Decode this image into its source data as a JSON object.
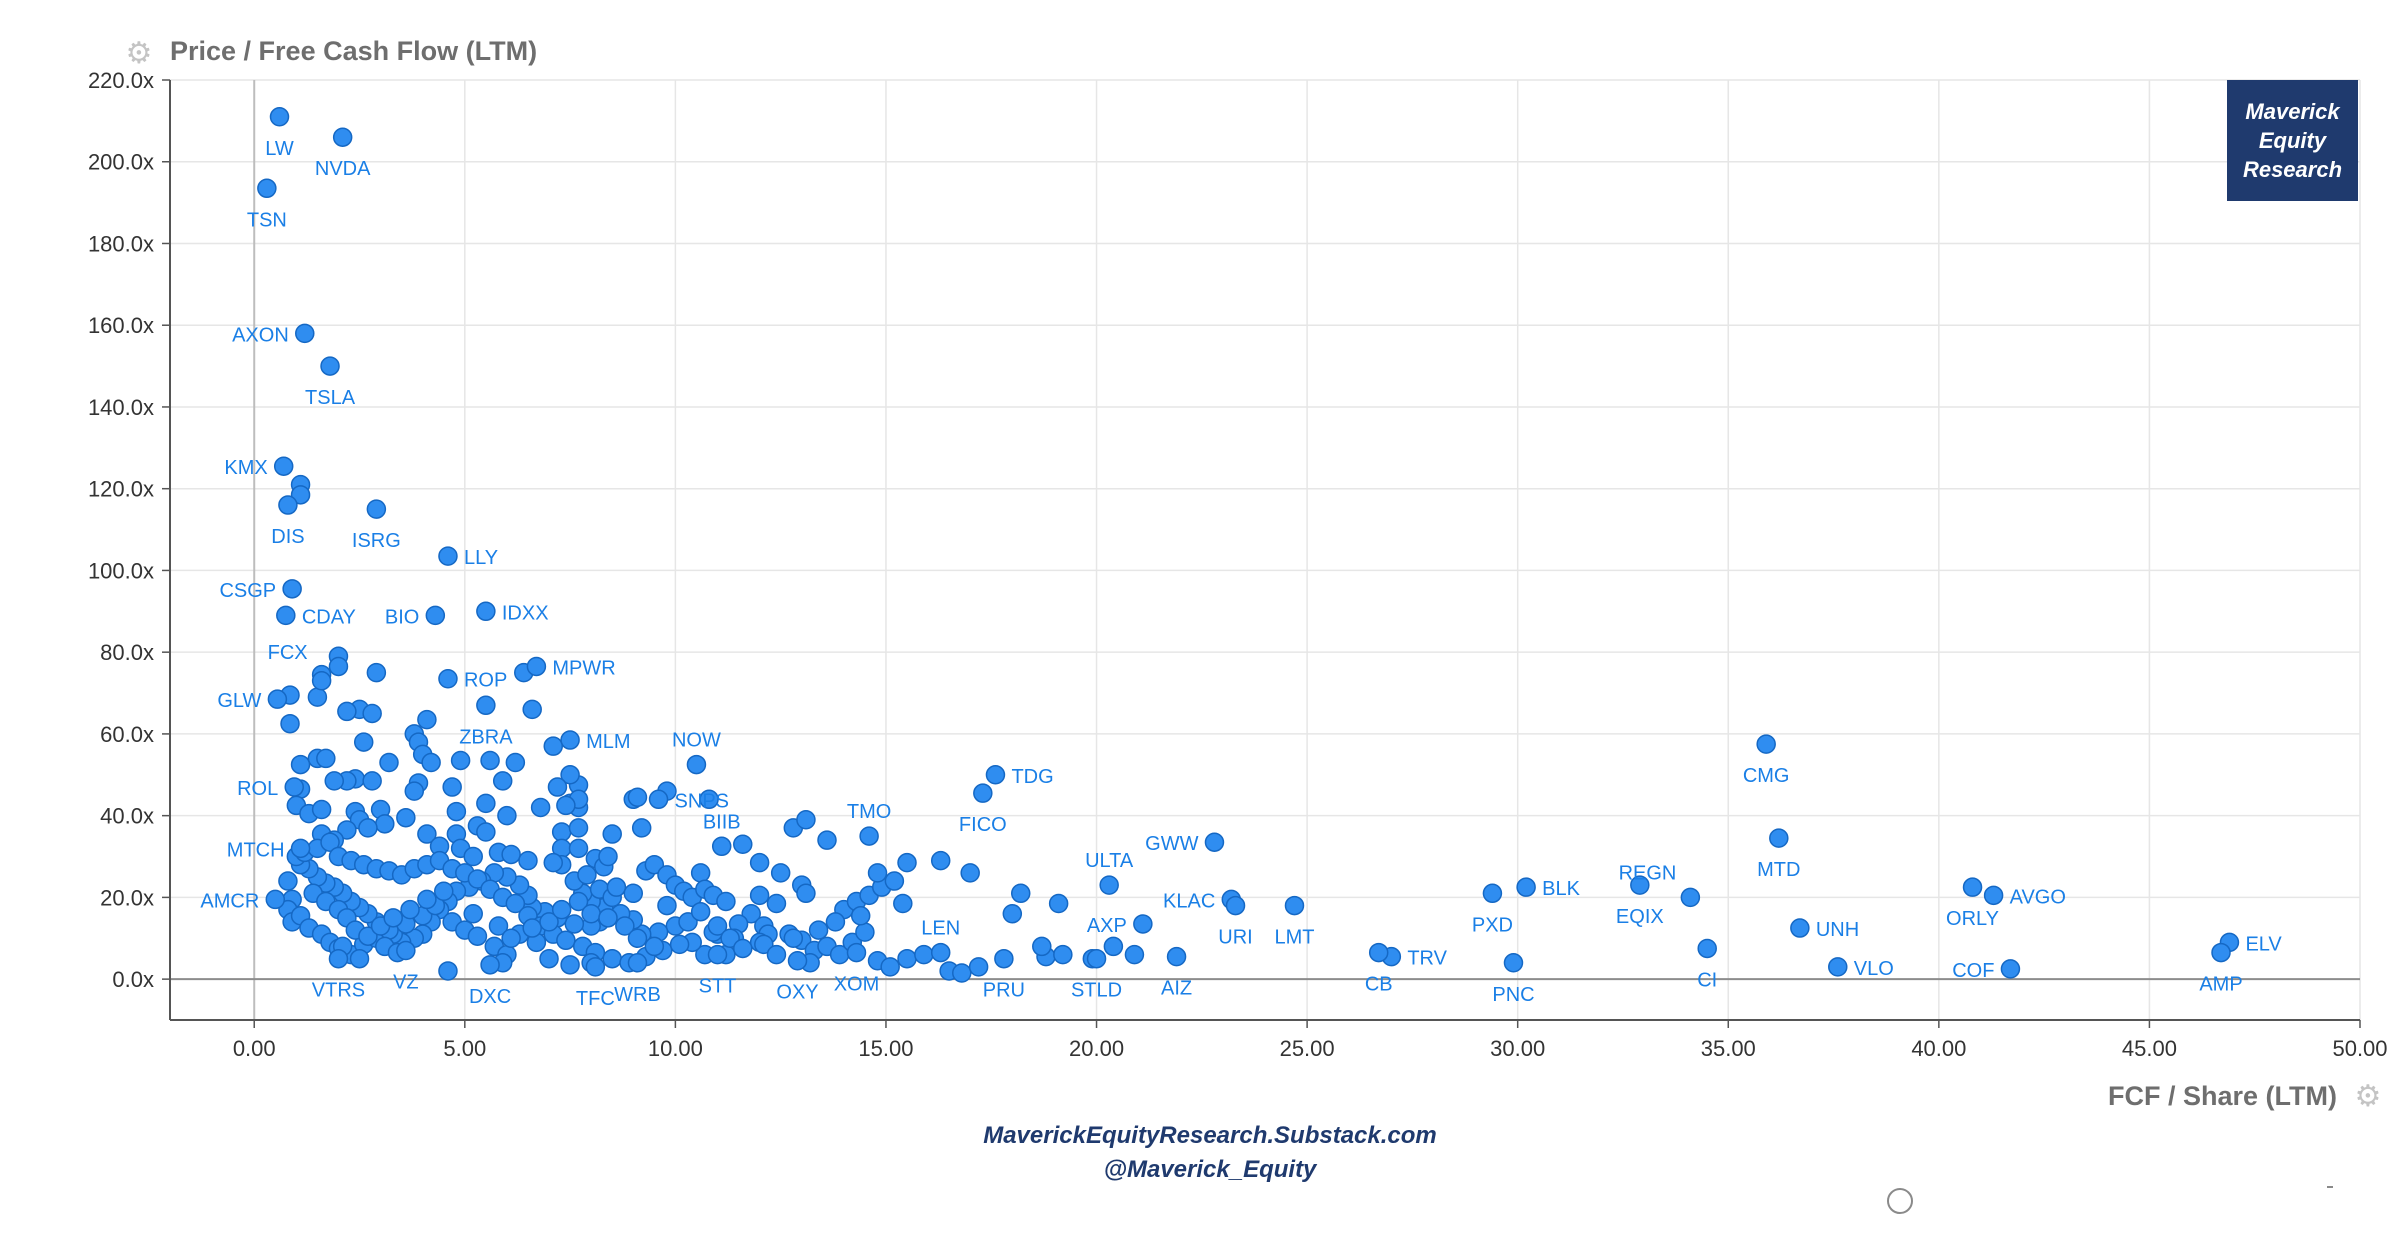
{
  "header": {
    "y_axis_title": "Price / Free Cash Flow (LTM)"
  },
  "footer": {
    "x_axis_title": "FCF / Share (LTM)",
    "line1": "MaverickEquityResearch.Substack.com",
    "line2": "@Maverick_Equity"
  },
  "badge": {
    "line1": "Maverick",
    "line2": "Equity",
    "line3": "Research"
  },
  "icons": {
    "y_axis": "gear-icon",
    "x_axis": "gear-icon",
    "bottom": "circle-icon"
  },
  "colors": {
    "point": "#2f8df0",
    "point_stroke": "#1568c4",
    "label": "#1a7fe6",
    "grid": "#e6e6e6",
    "axis": "#555555",
    "tick": "#333333",
    "brand": "#1f3a6e"
  },
  "chart_data": {
    "type": "scatter",
    "title": "Price / Free Cash Flow (LTM)",
    "xlabel": "FCF / Share (LTM)",
    "ylabel": "Price / Free Cash Flow (LTM)",
    "xlim": [
      -2,
      50
    ],
    "ylim": [
      -10,
      220
    ],
    "grid": true,
    "legend": "none",
    "x_ticks": [
      "0.00",
      "5.00",
      "10.00",
      "15.00",
      "20.00",
      "25.00",
      "30.00",
      "35.00",
      "40.00",
      "45.00",
      "50.00"
    ],
    "y_ticks": [
      "0.0x",
      "20.0x",
      "40.0x",
      "60.0x",
      "80.0x",
      "100.0x",
      "120.0x",
      "140.0x",
      "160.0x",
      "180.0x",
      "200.0x",
      "220.0x"
    ],
    "labeled_points": [
      {
        "label": "LW",
        "x": 0.6,
        "y": 211,
        "pos": "below"
      },
      {
        "label": "NVDA",
        "x": 2.1,
        "y": 206,
        "pos": "below"
      },
      {
        "label": "TSN",
        "x": 0.3,
        "y": 193.5,
        "pos": "below"
      },
      {
        "label": "AXON",
        "x": 1.2,
        "y": 158,
        "pos": "left"
      },
      {
        "label": "TSLA",
        "x": 1.8,
        "y": 150,
        "pos": "below"
      },
      {
        "label": "KMX",
        "x": 0.7,
        "y": 125.5,
        "pos": "left"
      },
      {
        "label": "DIS",
        "x": 0.8,
        "y": 116,
        "pos": "below"
      },
      {
        "label": "ISRG",
        "x": 2.9,
        "y": 115,
        "pos": "below"
      },
      {
        "label": "LLY",
        "x": 4.6,
        "y": 103.5,
        "pos": "right"
      },
      {
        "label": "CSGP",
        "x": 0.9,
        "y": 95.5,
        "pos": "left"
      },
      {
        "label": "CDAY",
        "x": 0.75,
        "y": 89,
        "pos": "right"
      },
      {
        "label": "BIO",
        "x": 4.3,
        "y": 89,
        "pos": "left"
      },
      {
        "label": "IDXX",
        "x": 5.5,
        "y": 90,
        "pos": "right"
      },
      {
        "label": "FCX",
        "x": 1.6,
        "y": 73,
        "pos": "upleft"
      },
      {
        "label": "ROP",
        "x": 4.6,
        "y": 73.5,
        "pos": "right"
      },
      {
        "label": "MPWR",
        "x": 6.7,
        "y": 76.5,
        "pos": "right"
      },
      {
        "label": "GLW",
        "x": 0.55,
        "y": 68.5,
        "pos": "left"
      },
      {
        "label": "ZBRA",
        "x": 5.5,
        "y": 67,
        "pos": "below"
      },
      {
        "label": "MLM",
        "x": 7.5,
        "y": 58.5,
        "pos": "right"
      },
      {
        "label": "NOW",
        "x": 10.5,
        "y": 52.5,
        "pos": "above"
      },
      {
        "label": "TDG",
        "x": 17.6,
        "y": 50,
        "pos": "right"
      },
      {
        "label": "ROL",
        "x": 0.95,
        "y": 47,
        "pos": "left"
      },
      {
        "label": "SNPS",
        "x": 9.6,
        "y": 44,
        "pos": "right"
      },
      {
        "label": "TMO",
        "x": 14.6,
        "y": 35,
        "pos": "above"
      },
      {
        "label": "FICO",
        "x": 17.3,
        "y": 45.5,
        "pos": "below"
      },
      {
        "label": "MTCH",
        "x": 1.1,
        "y": 32,
        "pos": "left"
      },
      {
        "label": "BIIB",
        "x": 11.1,
        "y": 32.5,
        "pos": "above"
      },
      {
        "label": "GWW",
        "x": 22.8,
        "y": 33.5,
        "pos": "left"
      },
      {
        "label": "ULTA",
        "x": 20.3,
        "y": 23,
        "pos": "above"
      },
      {
        "label": "CMG",
        "x": 35.9,
        "y": 57.5,
        "pos": "below"
      },
      {
        "label": "MTD",
        "x": 36.2,
        "y": 34.5,
        "pos": "below"
      },
      {
        "label": "AMCR",
        "x": 0.5,
        "y": 19.5,
        "pos": "left"
      },
      {
        "label": "KLAC",
        "x": 23.2,
        "y": 19.5,
        "pos": "left"
      },
      {
        "label": "URI",
        "x": 23.3,
        "y": 18,
        "pos": "below"
      },
      {
        "label": "LMT",
        "x": 24.7,
        "y": 18,
        "pos": "below"
      },
      {
        "label": "REGN",
        "x": 34.1,
        "y": 20,
        "pos": "aboveleft"
      },
      {
        "label": "BLK",
        "x": 30.2,
        "y": 22.5,
        "pos": "right"
      },
      {
        "label": "PXD",
        "x": 29.4,
        "y": 21,
        "pos": "below"
      },
      {
        "label": "EQIX",
        "x": 32.9,
        "y": 23,
        "pos": "below"
      },
      {
        "label": "ORLY",
        "x": 40.8,
        "y": 22.5,
        "pos": "below"
      },
      {
        "label": "AVGO",
        "x": 41.3,
        "y": 20.5,
        "pos": "right"
      },
      {
        "label": "AXP",
        "x": 21.1,
        "y": 13.5,
        "pos": "left"
      },
      {
        "label": "LEN",
        "x": 16.3,
        "y": 6.5,
        "pos": "above"
      },
      {
        "label": "UNH",
        "x": 36.7,
        "y": 12.5,
        "pos": "right"
      },
      {
        "label": "ELV",
        "x": 46.9,
        "y": 9,
        "pos": "right"
      },
      {
        "label": "TRV",
        "x": 27.0,
        "y": 5.5,
        "pos": "right"
      },
      {
        "label": "CB",
        "x": 26.7,
        "y": 6.5,
        "pos": "below"
      },
      {
        "label": "PNC",
        "x": 29.9,
        "y": 4,
        "pos": "below"
      },
      {
        "label": "CI",
        "x": 34.5,
        "y": 7.5,
        "pos": "below"
      },
      {
        "label": "VLO",
        "x": 37.6,
        "y": 3,
        "pos": "right"
      },
      {
        "label": "COF",
        "x": 41.7,
        "y": 2.5,
        "pos": "left"
      },
      {
        "label": "AMP",
        "x": 46.7,
        "y": 6.5,
        "pos": "below"
      },
      {
        "label": "AIZ",
        "x": 21.9,
        "y": 5.5,
        "pos": "below"
      },
      {
        "label": "STLD",
        "x": 20.0,
        "y": 5,
        "pos": "below"
      },
      {
        "label": "PRU",
        "x": 17.8,
        "y": 5,
        "pos": "below"
      },
      {
        "label": "XOM",
        "x": 14.3,
        "y": 6.5,
        "pos": "below"
      },
      {
        "label": "OXY",
        "x": 12.9,
        "y": 4.5,
        "pos": "below"
      },
      {
        "label": "STT",
        "x": 11.0,
        "y": 6,
        "pos": "below"
      },
      {
        "label": "WRB",
        "x": 9.1,
        "y": 4,
        "pos": "below"
      },
      {
        "label": "TFC",
        "x": 8.1,
        "y": 3,
        "pos": "below"
      },
      {
        "label": "DXC",
        "x": 5.6,
        "y": 3.5,
        "pos": "below"
      },
      {
        "label": "VZ",
        "x": 3.6,
        "y": 7,
        "pos": "below"
      },
      {
        "label": "VTRS",
        "x": 2.0,
        "y": 5,
        "pos": "below"
      }
    ],
    "unlabeled_points": [
      [
        1.1,
        121
      ],
      [
        1.1,
        118.5
      ],
      [
        0.85,
        69.5
      ],
      [
        2.0,
        79
      ],
      [
        2.0,
        76.5
      ],
      [
        2.9,
        75
      ],
      [
        1.6,
        74.5
      ],
      [
        1.5,
        69
      ],
      [
        2.5,
        66
      ],
      [
        2.2,
        65.5
      ],
      [
        2.8,
        65
      ],
      [
        6.6,
        66
      ],
      [
        6.4,
        75
      ],
      [
        0.85,
        62.5
      ],
      [
        4.1,
        63.5
      ],
      [
        3.8,
        60
      ],
      [
        3.9,
        58
      ],
      [
        4.0,
        55
      ],
      [
        4.2,
        53
      ],
      [
        4.9,
        53.5
      ],
      [
        5.6,
        53.5
      ],
      [
        6.2,
        53
      ],
      [
        1.5,
        54
      ],
      [
        1.7,
        54
      ],
      [
        1.1,
        52.5
      ],
      [
        2.6,
        58
      ],
      [
        3.2,
        53
      ],
      [
        7.1,
        57
      ],
      [
        7.7,
        47.5
      ],
      [
        7.5,
        50
      ],
      [
        7.2,
        47
      ],
      [
        7.5,
        43
      ],
      [
        7.7,
        42
      ],
      [
        7.7,
        44
      ],
      [
        6.8,
        42
      ],
      [
        7.4,
        42.5
      ],
      [
        7.3,
        36
      ],
      [
        7.7,
        37
      ],
      [
        7.3,
        32
      ],
      [
        7.7,
        32
      ],
      [
        5.9,
        48.5
      ],
      [
        6.0,
        40
      ],
      [
        5.5,
        43
      ],
      [
        4.8,
        41
      ],
      [
        3.9,
        48
      ],
      [
        4.7,
        47
      ],
      [
        3.8,
        46
      ],
      [
        2.4,
        49
      ],
      [
        2.2,
        48.5
      ],
      [
        2.8,
        48.5
      ],
      [
        1.9,
        48.5
      ],
      [
        1.1,
        46.5
      ],
      [
        1.0,
        42.5
      ],
      [
        1.3,
        40.5
      ],
      [
        1.6,
        41.5
      ],
      [
        2.4,
        41
      ],
      [
        3.0,
        41.5
      ],
      [
        3.6,
        39.5
      ],
      [
        2.5,
        39
      ],
      [
        3.1,
        38
      ],
      [
        2.7,
        37
      ],
      [
        2.2,
        36.5
      ],
      [
        1.6,
        35.5
      ],
      [
        1.9,
        34
      ],
      [
        4.1,
        35.5
      ],
      [
        5.3,
        37.5
      ],
      [
        5.5,
        36
      ],
      [
        4.8,
        35.5
      ],
      [
        4.4,
        32.5
      ],
      [
        4.9,
        32
      ],
      [
        5.2,
        30
      ],
      [
        5.8,
        31
      ],
      [
        6.1,
        30.5
      ],
      [
        6.5,
        29
      ],
      [
        7.3,
        28
      ],
      [
        7.1,
        28.5
      ],
      [
        8.1,
        29.5
      ],
      [
        8.3,
        27.5
      ],
      [
        8.4,
        30
      ],
      [
        8.5,
        35.5
      ],
      [
        9.0,
        44
      ],
      [
        9.1,
        44.5
      ],
      [
        10.8,
        44
      ],
      [
        9.8,
        46
      ],
      [
        9.2,
        37
      ],
      [
        9.3,
        26.5
      ],
      [
        9.5,
        28
      ],
      [
        9.8,
        25.5
      ],
      [
        10.0,
        23
      ],
      [
        10.2,
        21.5
      ],
      [
        10.4,
        20
      ],
      [
        10.6,
        26
      ],
      [
        10.7,
        22
      ],
      [
        10.9,
        20.5
      ],
      [
        11.2,
        19
      ],
      [
        11.6,
        33
      ],
      [
        12.0,
        28.5
      ],
      [
        12.5,
        26
      ],
      [
        12.8,
        37
      ],
      [
        13.1,
        39
      ],
      [
        13.6,
        34
      ],
      [
        13.0,
        23
      ],
      [
        13.1,
        21
      ],
      [
        12.4,
        18.5
      ],
      [
        12.0,
        20.5
      ],
      [
        11.8,
        16
      ],
      [
        11.5,
        13.5
      ],
      [
        12.1,
        13
      ],
      [
        12.2,
        11
      ],
      [
        12.0,
        9
      ],
      [
        11.4,
        10
      ],
      [
        11.0,
        11
      ],
      [
        10.7,
        6
      ],
      [
        11.2,
        6
      ],
      [
        10.9,
        11.5
      ],
      [
        10.4,
        9
      ],
      [
        10.0,
        13
      ],
      [
        9.6,
        11.5
      ],
      [
        9.2,
        11
      ],
      [
        9.0,
        14.5
      ],
      [
        8.7,
        16
      ],
      [
        8.3,
        17.5
      ],
      [
        8.0,
        19
      ],
      [
        7.8,
        21
      ],
      [
        7.6,
        24
      ],
      [
        7.9,
        25.5
      ],
      [
        8.2,
        22
      ],
      [
        8.5,
        20
      ],
      [
        8.6,
        22.5
      ],
      [
        9.0,
        21
      ],
      [
        8.2,
        14
      ],
      [
        8.0,
        13
      ],
      [
        7.6,
        13.5
      ],
      [
        7.2,
        15
      ],
      [
        6.9,
        16.5
      ],
      [
        6.6,
        17.5
      ],
      [
        6.5,
        20.5
      ],
      [
        6.3,
        23
      ],
      [
        6.0,
        25
      ],
      [
        5.7,
        26
      ],
      [
        5.4,
        24
      ],
      [
        5.1,
        22.5
      ],
      [
        4.8,
        21.5
      ],
      [
        4.6,
        19
      ],
      [
        4.4,
        17
      ],
      [
        4.2,
        14
      ],
      [
        4.0,
        11
      ],
      [
        3.8,
        10
      ],
      [
        3.5,
        9
      ],
      [
        3.3,
        11
      ],
      [
        3.1,
        12.5
      ],
      [
        2.9,
        14
      ],
      [
        2.7,
        16
      ],
      [
        2.5,
        17.5
      ],
      [
        2.3,
        19
      ],
      [
        2.1,
        21
      ],
      [
        1.9,
        22.5
      ],
      [
        1.7,
        23.5
      ],
      [
        1.5,
        25
      ],
      [
        1.3,
        27
      ],
      [
        1.1,
        28
      ],
      [
        1.0,
        30
      ],
      [
        1.2,
        31
      ],
      [
        1.5,
        32
      ],
      [
        1.8,
        33.5
      ],
      [
        2.0,
        30
      ],
      [
        2.3,
        29
      ],
      [
        2.6,
        28
      ],
      [
        2.9,
        27
      ],
      [
        3.2,
        26.5
      ],
      [
        3.5,
        25.5
      ],
      [
        3.8,
        27
      ],
      [
        4.1,
        28
      ],
      [
        4.4,
        29
      ],
      [
        4.7,
        27
      ],
      [
        5.0,
        26
      ],
      [
        5.3,
        24.5
      ],
      [
        5.6,
        22
      ],
      [
        5.9,
        20
      ],
      [
        6.2,
        18.5
      ],
      [
        6.5,
        15.5
      ],
      [
        6.8,
        13
      ],
      [
        7.1,
        11
      ],
      [
        7.4,
        9.5
      ],
      [
        7.8,
        8
      ],
      [
        8.1,
        6.5
      ],
      [
        8.5,
        5
      ],
      [
        8.9,
        4
      ],
      [
        9.3,
        5.5
      ],
      [
        9.7,
        7
      ],
      [
        10.1,
        8.5
      ],
      [
        0.8,
        24
      ],
      [
        0.9,
        19.5
      ],
      [
        0.8,
        17
      ],
      [
        0.9,
        14
      ],
      [
        1.1,
        15.5
      ],
      [
        1.3,
        12.5
      ],
      [
        1.6,
        11
      ],
      [
        1.8,
        9
      ],
      [
        2.0,
        7.5
      ],
      [
        2.3,
        6
      ],
      [
        2.6,
        8.5
      ],
      [
        2.9,
        10
      ],
      [
        3.2,
        12
      ],
      [
        3.6,
        13.5
      ],
      [
        4.0,
        15.5
      ],
      [
        4.3,
        18
      ],
      [
        4.7,
        14
      ],
      [
        5.0,
        12
      ],
      [
        5.3,
        10.5
      ],
      [
        5.7,
        8
      ],
      [
        6.0,
        6
      ],
      [
        6.3,
        11
      ],
      [
        6.7,
        9
      ],
      [
        7.0,
        5
      ],
      [
        7.5,
        3.5
      ],
      [
        8.0,
        4
      ],
      [
        4.6,
        2
      ],
      [
        5.9,
        4
      ],
      [
        3.1,
        8
      ],
      [
        3.4,
        6.5
      ],
      [
        2.5,
        5
      ],
      [
        2.1,
        8
      ],
      [
        1.4,
        21
      ],
      [
        1.7,
        19
      ],
      [
        2.0,
        17
      ],
      [
        2.2,
        15
      ],
      [
        2.4,
        12
      ],
      [
        2.7,
        10.5
      ],
      [
        3.0,
        13
      ],
      [
        3.3,
        15
      ],
      [
        3.7,
        17
      ],
      [
        4.1,
        19.5
      ],
      [
        4.5,
        21.5
      ],
      [
        5.2,
        16
      ],
      [
        5.8,
        13
      ],
      [
        6.1,
        10
      ],
      [
        6.6,
        12.5
      ],
      [
        7.0,
        14
      ],
      [
        7.3,
        17
      ],
      [
        7.7,
        19
      ],
      [
        8.0,
        16
      ],
      [
        8.4,
        15
      ],
      [
        8.8,
        13
      ],
      [
        9.1,
        10
      ],
      [
        9.5,
        8
      ],
      [
        9.8,
        18
      ],
      [
        10.3,
        14
      ],
      [
        10.6,
        16.5
      ],
      [
        11.0,
        13
      ],
      [
        11.3,
        10
      ],
      [
        11.6,
        7.5
      ],
      [
        12.1,
        8.5
      ],
      [
        12.4,
        6
      ],
      [
        12.7,
        11
      ],
      [
        13.0,
        9.5
      ],
      [
        13.3,
        7
      ],
      [
        13.6,
        8
      ],
      [
        13.9,
        6
      ],
      [
        14.2,
        9
      ],
      [
        14.5,
        11.5
      ],
      [
        14.0,
        17
      ],
      [
        14.3,
        19
      ],
      [
        14.6,
        20.5
      ],
      [
        14.9,
        22.5
      ],
      [
        15.2,
        24
      ],
      [
        14.8,
        26
      ],
      [
        15.5,
        28.5
      ],
      [
        16.3,
        29
      ],
      [
        17.0,
        26
      ],
      [
        18.2,
        21
      ],
      [
        19.1,
        18.5
      ],
      [
        18.0,
        16
      ],
      [
        15.4,
        18.5
      ],
      [
        14.4,
        15.5
      ],
      [
        13.8,
        14
      ],
      [
        13.4,
        12
      ],
      [
        12.8,
        10
      ],
      [
        13.2,
        4
      ],
      [
        14.8,
        4.5
      ],
      [
        15.1,
        3
      ],
      [
        15.5,
        5
      ],
      [
        15.9,
        6
      ],
      [
        16.5,
        2
      ],
      [
        16.8,
        1.5
      ],
      [
        17.2,
        3
      ],
      [
        18.8,
        5.5
      ],
      [
        19.2,
        6
      ],
      [
        18.7,
        8
      ],
      [
        20.4,
        8
      ],
      [
        20.9,
        6
      ],
      [
        19.9,
        5
      ]
    ]
  }
}
